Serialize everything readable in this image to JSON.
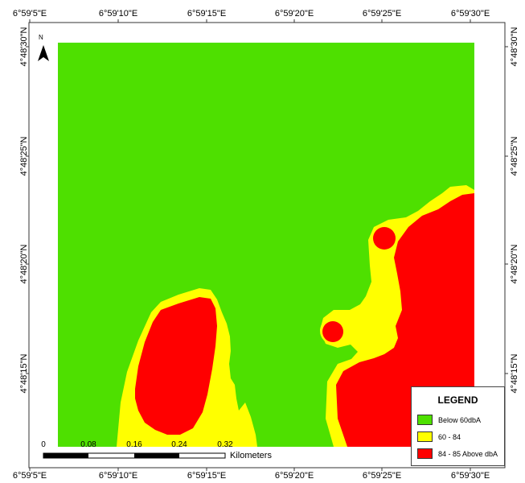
{
  "map": {
    "colors": {
      "below_60": "#4ee000",
      "range_60_84": "#ffff00",
      "range_84_85": "#ff0000"
    },
    "north_arrow": {
      "label": "N",
      "icon": "north-arrow-icon"
    },
    "longitude_ticks": [
      "6°59'5\"E",
      "6°59'10\"E",
      "6°59'15\"E",
      "6°59'20\"E",
      "6°59'25\"E",
      "6°59'30\"E"
    ],
    "latitude_ticks": [
      "4°48'30\"N",
      "4°48'25\"N",
      "4°48'20\"N",
      "4°48'15\"N"
    ],
    "scale_bar": {
      "labels": [
        "0",
        "0.08",
        "0.16",
        "0.24",
        "0.32"
      ],
      "units": "Kilometers"
    },
    "legend": {
      "title": "LEGEND",
      "items": [
        {
          "label": "Below 60dbA",
          "color": "#4ee000"
        },
        {
          "label": "60 - 84",
          "color": "#ffff00"
        },
        {
          "label": "84 - 85 Above dbA",
          "color": "#ff0000"
        }
      ]
    }
  }
}
